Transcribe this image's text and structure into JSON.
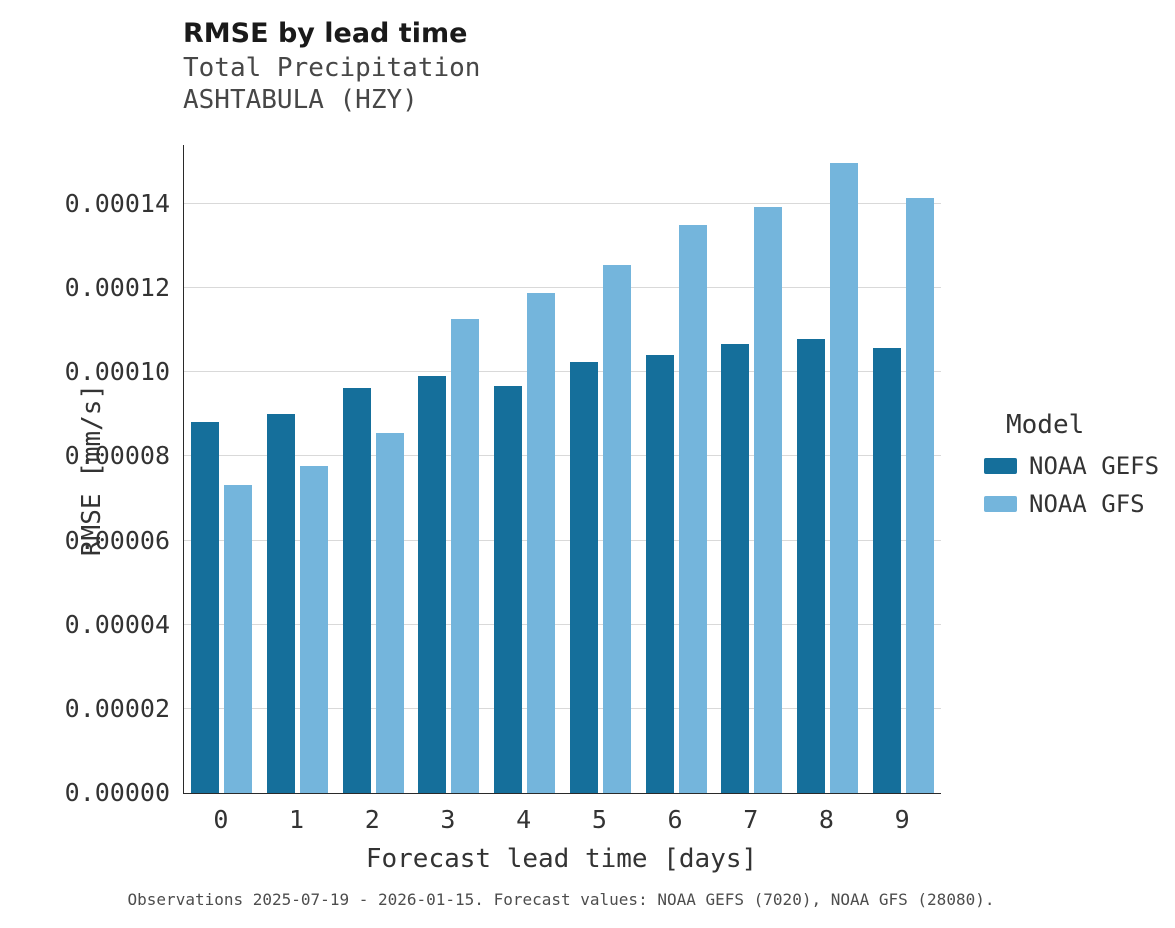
{
  "header": {
    "title": "RMSE by lead time",
    "subtitle_line1": "Total Precipitation",
    "subtitle_line2": "ASHTABULA (HZY)"
  },
  "axes": {
    "x_title": "Forecast lead time [days]",
    "y_title": "RMSE [mm/s]"
  },
  "legend": {
    "title": "Model",
    "items": [
      {
        "label": "NOAA GEFS",
        "color": "#156f9b"
      },
      {
        "label": "NOAA GFS",
        "color": "#74b5dc"
      }
    ]
  },
  "caption": "Observations 2025-07-19 - 2026-01-15. Forecast values: NOAA GEFS (7020), NOAA GFS (28080).",
  "chart_data": {
    "type": "bar",
    "title": "RMSE by lead time",
    "subtitle": [
      "Total Precipitation",
      "ASHTABULA (HZY)"
    ],
    "xlabel": "Forecast lead time [days]",
    "ylabel": "RMSE [mm/s]",
    "categories": [
      0,
      1,
      2,
      3,
      4,
      5,
      6,
      7,
      8,
      9
    ],
    "series": [
      {
        "name": "NOAA GEFS",
        "color": "#156f9b",
        "values": [
          8.82e-05,
          9e-05,
          9.63e-05,
          9.91e-05,
          9.68e-05,
          0.0001024,
          0.0001041,
          0.0001067,
          0.0001078,
          0.0001057
        ]
      },
      {
        "name": "NOAA GFS",
        "color": "#74b5dc",
        "values": [
          7.33e-05,
          7.78e-05,
          8.55e-05,
          0.0001127,
          0.0001189,
          0.0001255,
          0.0001351,
          0.0001393,
          0.0001497,
          0.0001414
        ]
      }
    ],
    "ylim": [
      0,
      0.000154
    ],
    "yticks": [
      0,
      2e-05,
      4e-05,
      6e-05,
      8e-05,
      0.0001,
      0.00012,
      0.00014
    ],
    "ytick_labels": [
      "0.00000",
      "0.00002",
      "0.00004",
      "0.00006",
      "0.00008",
      "0.00010",
      "0.00012",
      "0.00014"
    ],
    "legend_title": "Model",
    "legend_position": "right",
    "grid": true
  }
}
